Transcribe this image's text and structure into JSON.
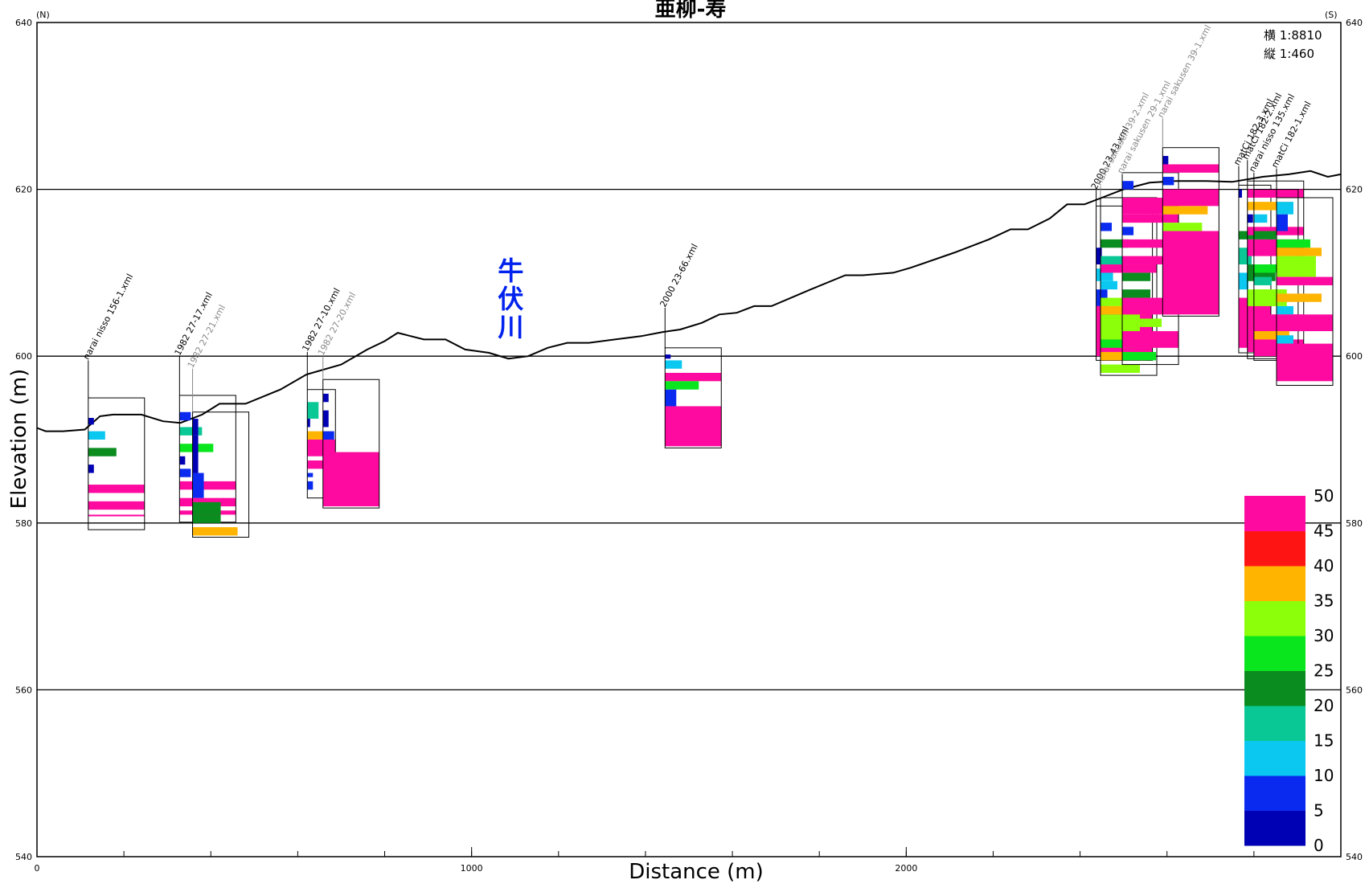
{
  "chart_data": {
    "type": "cross-section",
    "title": "亜柳-寿",
    "left_direction": "(N)",
    "right_direction": "(S)",
    "xlabel": "Distance (m)",
    "ylabel": "Elevation (m)",
    "xlim": [
      0,
      3000
    ],
    "ylim": [
      540,
      640
    ],
    "x_ticks": [
      0,
      1000,
      2000
    ],
    "y_ticks": [
      540,
      560,
      580,
      600,
      620,
      640
    ],
    "scale_horizontal": "横  1:8810",
    "scale_vertical": "縦    1:460",
    "river_label": "牛伏川",
    "river_x": 1090,
    "ground_profile": [
      [
        0,
        591.4
      ],
      [
        20,
        591.0
      ],
      [
        60,
        591.0
      ],
      [
        110,
        591.2
      ],
      [
        145,
        592.8
      ],
      [
        175,
        593.0
      ],
      [
        240,
        593.0
      ],
      [
        290,
        592.2
      ],
      [
        330,
        592.0
      ],
      [
        380,
        593.0
      ],
      [
        420,
        594.3
      ],
      [
        480,
        594.3
      ],
      [
        560,
        596.0
      ],
      [
        620,
        597.8
      ],
      [
        700,
        599.0
      ],
      [
        760,
        600.8
      ],
      [
        800,
        601.8
      ],
      [
        830,
        602.8
      ],
      [
        890,
        602.0
      ],
      [
        940,
        602.0
      ],
      [
        985,
        600.8
      ],
      [
        1040,
        600.4
      ],
      [
        1085,
        599.7
      ],
      [
        1130,
        600.0
      ],
      [
        1175,
        601.0
      ],
      [
        1220,
        601.6
      ],
      [
        1270,
        601.6
      ],
      [
        1330,
        602.0
      ],
      [
        1390,
        602.4
      ],
      [
        1440,
        602.9
      ],
      [
        1480,
        603.2
      ],
      [
        1530,
        604.0
      ],
      [
        1570,
        605.0
      ],
      [
        1610,
        605.2
      ],
      [
        1650,
        606.0
      ],
      [
        1690,
        606.0
      ],
      [
        1780,
        608.0
      ],
      [
        1860,
        609.7
      ],
      [
        1900,
        609.7
      ],
      [
        1970,
        610.0
      ],
      [
        2010,
        610.6
      ],
      [
        2110,
        612.4
      ],
      [
        2190,
        614.0
      ],
      [
        2240,
        615.2
      ],
      [
        2280,
        615.2
      ],
      [
        2330,
        616.5
      ],
      [
        2370,
        618.2
      ],
      [
        2410,
        618.2
      ],
      [
        2450,
        619.0
      ],
      [
        2500,
        620.0
      ],
      [
        2560,
        620.8
      ],
      [
        2620,
        621.0
      ],
      [
        2690,
        621.0
      ],
      [
        2750,
        620.9
      ],
      [
        2820,
        621.5
      ],
      [
        2880,
        621.8
      ],
      [
        2930,
        622.2
      ],
      [
        2970,
        621.5
      ],
      [
        3000,
        621.8
      ]
    ],
    "colorbar": {
      "ticks": [
        "0",
        "5",
        "10",
        "15",
        "20",
        "25",
        "30",
        "35",
        "40",
        "45",
        "50"
      ],
      "colors": [
        "#0000b4",
        "#0a2af0",
        "#0ac8f0",
        "#0ac896",
        "#0a8c1e",
        "#0ae61e",
        "#8cff0a",
        "#ffb400",
        "#ff1414",
        "#ff0aa0"
      ]
    },
    "boreholes": [
      {
        "label": "narai nisso 156-1.xml",
        "x": 118,
        "width": 70,
        "top": 595,
        "bottom": 579.2,
        "label_gray": false,
        "collar_elev": 591.3,
        "label_anchor_elev": 599.5,
        "layers": [
          [
            592.6,
            591.8,
            5
          ],
          [
            591.0,
            590.0,
            15
          ],
          [
            589.0,
            588.0,
            25
          ],
          [
            587.0,
            586.0,
            5
          ],
          [
            584.6,
            583.6,
            50
          ],
          [
            582.6,
            581.6,
            50
          ],
          [
            581.0,
            580.8,
            50
          ]
        ]
      },
      {
        "label": "1982 27-17.xml",
        "x": 328,
        "width": 70,
        "top": 595.3,
        "bottom": 580.1,
        "label_gray": false,
        "collar_elev": 592.0,
        "label_anchor_elev": 600.0,
        "layers": [
          [
            593.3,
            592.3,
            10
          ],
          [
            591.5,
            590.5,
            20
          ],
          [
            589.5,
            588.5,
            30
          ],
          [
            588.0,
            587.0,
            5
          ],
          [
            586.5,
            585.5,
            10
          ],
          [
            585.0,
            584.0,
            50
          ],
          [
            583.0,
            582.0,
            50
          ],
          [
            581.5,
            581.0,
            50
          ]
        ]
      },
      {
        "label": "1982 27-21.xml",
        "x": 358,
        "width": 70,
        "top": 593.3,
        "bottom": 578.3,
        "label_gray": true,
        "collar_elev": 593.0,
        "label_anchor_elev": 598.5,
        "layers": [
          [
            592.5,
            590.5,
            5
          ],
          [
            590.5,
            586.0,
            5
          ],
          [
            586.0,
            583.0,
            10
          ],
          [
            582.5,
            581.0,
            25
          ],
          [
            581.0,
            580.0,
            25
          ],
          [
            579.5,
            578.5,
            40
          ]
        ]
      },
      {
        "label": "1982 27-10.xml",
        "x": 622,
        "width": 35,
        "top": 596,
        "bottom": 583,
        "label_gray": false,
        "collar_elev": 596.0,
        "label_anchor_elev": 600.5,
        "layers": [
          [
            594.5,
            592.5,
            20
          ],
          [
            592.5,
            591.5,
            5
          ],
          [
            591.0,
            590.0,
            40
          ],
          [
            590.0,
            588.0,
            50
          ],
          [
            587.5,
            586.5,
            50
          ],
          [
            586.0,
            585.5,
            10
          ],
          [
            585.0,
            584.0,
            10
          ]
        ]
      },
      {
        "label": "1982 27-20.xml",
        "x": 658,
        "width": 70,
        "top": 597.2,
        "bottom": 581.8,
        "label_gray": true,
        "collar_elev": 597.2,
        "label_anchor_elev": 600.0,
        "layers": [
          [
            595.5,
            594.5,
            5
          ],
          [
            593.5,
            591.5,
            5
          ],
          [
            591.0,
            590.0,
            10
          ],
          [
            588.5,
            582.0,
            50
          ]
        ]
      },
      {
        "label": "2000 23-66.xml",
        "x": 1445,
        "width": 70,
        "top": 601.0,
        "bottom": 589.0,
        "label_gray": false,
        "collar_elev": 602.0,
        "label_anchor_elev": 605.8,
        "layers": [
          [
            600.2,
            599.7,
            5
          ],
          [
            599.5,
            598.5,
            15
          ],
          [
            598.0,
            597.0,
            50
          ],
          [
            597.0,
            596.0,
            30
          ],
          [
            596.0,
            594.0,
            10
          ],
          [
            594.0,
            589.2,
            50
          ]
        ]
      },
      {
        "label": "2000 23-43.xml",
        "x": 2437,
        "width": 70,
        "top": 618,
        "bottom": 599.5,
        "label_gray": false,
        "collar_elev": 618.0,
        "label_anchor_elev": 619.9,
        "layers": [
          [
            613.0,
            611.0,
            5
          ],
          [
            610.5,
            609.0,
            15
          ],
          [
            608.0,
            606.0,
            10
          ],
          [
            606.0,
            600.0,
            50
          ]
        ]
      },
      {
        "label": "narai sakusen 39-2.xml",
        "x": 2447,
        "width": 70,
        "top": 619,
        "bottom": 597.7,
        "label_gray": true,
        "collar_elev": 619.0,
        "label_anchor_elev": 620.4,
        "layers": [
          [
            616.0,
            615.0,
            10
          ],
          [
            614.0,
            613.0,
            25
          ],
          [
            612.0,
            611.0,
            20
          ],
          [
            611.0,
            610.0,
            50
          ],
          [
            609.0,
            608.0,
            15
          ],
          [
            607.0,
            606.0,
            35
          ],
          [
            606.0,
            605.0,
            40
          ],
          [
            605.0,
            602.0,
            35
          ],
          [
            602.0,
            601.0,
            30
          ],
          [
            600.5,
            599.5,
            40
          ],
          [
            599.0,
            598.0,
            35
          ]
        ]
      },
      {
        "label": "narai sakusen 29-1.xml",
        "x": 2497,
        "width": 70,
        "top": 622,
        "bottom": 599.0,
        "label_gray": true,
        "collar_elev": 621.0,
        "label_anchor_elev": 621.8,
        "layers": [
          [
            621.0,
            620.0,
            10
          ],
          [
            619.0,
            617.0,
            50
          ],
          [
            617.0,
            616.0,
            50
          ],
          [
            615.5,
            614.5,
            10
          ],
          [
            614.0,
            613.0,
            50
          ],
          [
            612.0,
            611.0,
            50
          ],
          [
            610.0,
            609.0,
            25
          ],
          [
            608.0,
            607.0,
            25
          ],
          [
            607.0,
            605.0,
            50
          ],
          [
            604.5,
            603.5,
            35
          ],
          [
            603.0,
            601.0,
            50
          ],
          [
            600.5,
            599.5,
            30
          ]
        ]
      },
      {
        "label": "narai sakusen 39-1.xml",
        "x": 2590,
        "width": 70,
        "top": 625,
        "bottom": 604.8,
        "label_gray": true,
        "collar_elev": 625.0,
        "label_anchor_elev": 628.5,
        "layers": [
          [
            624.0,
            623.0,
            5
          ],
          [
            623.0,
            622.0,
            50
          ],
          [
            621.5,
            620.5,
            10
          ],
          [
            620.0,
            618.0,
            50
          ],
          [
            618.0,
            617.0,
            40
          ],
          [
            616.0,
            615.0,
            35
          ],
          [
            615.0,
            605.0,
            50
          ]
        ]
      },
      {
        "label": "matCi 182-3.xml",
        "x": 2765,
        "width": 40,
        "top": 620.5,
        "bottom": 600.4,
        "label_gray": false,
        "collar_elev": 620.5,
        "label_anchor_elev": 622.8,
        "layers": [
          [
            620.0,
            619.0,
            5
          ],
          [
            615.0,
            614.0,
            25
          ],
          [
            613.0,
            611.0,
            20
          ],
          [
            610.0,
            608.0,
            15
          ],
          [
            607.0,
            601.0,
            50
          ]
        ]
      },
      {
        "label": "matCi 182-2.xml",
        "x": 2785,
        "width": 70,
        "top": 621.0,
        "bottom": 599.7,
        "label_gray": false,
        "collar_elev": 621.0,
        "label_anchor_elev": 623.5,
        "layers": [
          [
            620.0,
            619.0,
            50
          ],
          [
            618.5,
            617.5,
            40
          ],
          [
            617.0,
            616.0,
            5
          ],
          [
            615.5,
            614.5,
            50
          ],
          [
            614.0,
            612.0,
            50
          ],
          [
            611.0,
            609.0,
            25
          ],
          [
            608.0,
            606.0,
            35
          ],
          [
            605.0,
            603.0,
            50
          ],
          [
            602.0,
            600.5,
            50
          ]
        ]
      },
      {
        "label": "narai nisso 135.xml",
        "x": 2800,
        "width": 55,
        "top": 620.0,
        "bottom": 599.5,
        "label_gray": false,
        "collar_elev": 620.0,
        "label_anchor_elev": 622.0,
        "layers": [
          [
            617.0,
            616.0,
            15
          ],
          [
            615.0,
            614.0,
            25
          ],
          [
            613.5,
            612.5,
            50
          ],
          [
            611.0,
            610.0,
            30
          ],
          [
            609.5,
            608.5,
            20
          ],
          [
            608.0,
            606.5,
            35
          ],
          [
            605.0,
            603.5,
            50
          ],
          [
            603.0,
            602.0,
            40
          ],
          [
            601.5,
            600.0,
            50
          ]
        ]
      },
      {
        "label": "matCi 182-1.xml",
        "x": 2852,
        "width": 70,
        "top": 619.0,
        "bottom": 596.5,
        "label_gray": false,
        "collar_elev": 619.0,
        "label_anchor_elev": 622.5,
        "layers": [
          [
            618.5,
            617.0,
            15
          ],
          [
            617.0,
            615.0,
            10
          ],
          [
            614.0,
            613.0,
            30
          ],
          [
            613.0,
            612.0,
            40
          ],
          [
            612.0,
            609.5,
            35
          ],
          [
            609.5,
            608.5,
            50
          ],
          [
            607.5,
            606.5,
            40
          ],
          [
            606.0,
            605.0,
            15
          ],
          [
            605.0,
            603.0,
            50
          ],
          [
            602.5,
            601.5,
            15
          ],
          [
            601.5,
            597.0,
            50
          ]
        ]
      }
    ]
  }
}
